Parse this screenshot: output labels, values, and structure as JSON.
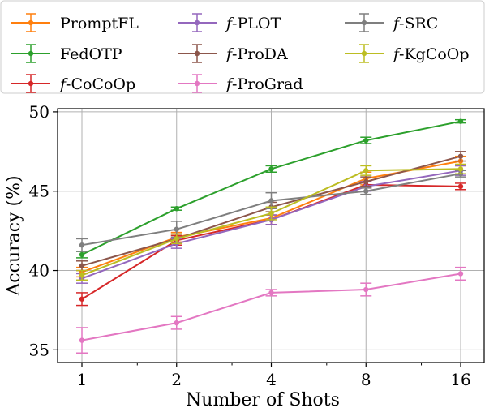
{
  "chart_data": {
    "type": "line",
    "xlabel": "Number of Shots",
    "ylabel": "Accuracy (%)",
    "x": [
      1,
      2,
      4,
      8,
      16
    ],
    "x_tick_labels": [
      "1",
      "2",
      "4",
      "8",
      "16"
    ],
    "x_scale": "log2",
    "y_ticks": [
      35,
      40,
      45,
      50
    ],
    "ylim": [
      34.2,
      50.2
    ],
    "grid": true,
    "legend": {
      "placement": "top",
      "columns": 3
    },
    "series": [
      {
        "name": "PromptFL",
        "prefix": "",
        "label": "PromptFL",
        "color": "#ff7f0e",
        "values": [
          39.9,
          42.1,
          43.3,
          45.8,
          46.9
        ],
        "errors": [
          0.3,
          0.3,
          0.4,
          0.4,
          0.3
        ]
      },
      {
        "name": "FedOTP",
        "prefix": "",
        "label": "FedOTP",
        "color": "#2ca02c",
        "values": [
          41.0,
          43.9,
          46.4,
          48.2,
          49.4
        ],
        "errors": [
          0.2,
          0.1,
          0.2,
          0.2,
          0.1
        ]
      },
      {
        "name": "f-CoCoOp",
        "prefix": "f-",
        "label": "CoCoOp",
        "color": "#d62728",
        "values": [
          38.2,
          41.9,
          43.2,
          45.4,
          45.3
        ],
        "errors": [
          0.4,
          0.3,
          0.3,
          0.2,
          0.2
        ]
      },
      {
        "name": "f-PLOT",
        "prefix": "f-",
        "label": "PLOT",
        "color": "#9467bd",
        "values": [
          39.5,
          41.7,
          43.2,
          45.3,
          46.3
        ],
        "errors": [
          0.3,
          0.3,
          0.3,
          0.3,
          0.3
        ]
      },
      {
        "name": "f-ProDA",
        "prefix": "f-",
        "label": "ProDA",
        "color": "#8c564b",
        "values": [
          40.3,
          42.0,
          44.0,
          45.6,
          47.2
        ],
        "errors": [
          0.3,
          0.3,
          0.3,
          0.3,
          0.3
        ]
      },
      {
        "name": "f-ProGrad",
        "prefix": "f-",
        "label": "ProGrad",
        "color": "#e377c2",
        "values": [
          35.6,
          36.7,
          38.6,
          38.8,
          39.8
        ],
        "errors": [
          0.8,
          0.4,
          0.2,
          0.4,
          0.4
        ]
      },
      {
        "name": "f-SRC",
        "prefix": "f-",
        "label": "SRC",
        "color": "#7f7f7f",
        "values": [
          41.6,
          42.6,
          44.4,
          45.0,
          46.1
        ],
        "errors": [
          0.4,
          0.5,
          0.5,
          0.2,
          0.2
        ]
      },
      {
        "name": "f-KgCoOp",
        "prefix": "f-",
        "label": "KgCoOp",
        "color": "#bcbd22",
        "values": [
          39.7,
          42.0,
          43.6,
          46.3,
          46.4
        ],
        "errors": [
          0.3,
          0.3,
          0.4,
          0.3,
          0.3
        ]
      }
    ]
  }
}
